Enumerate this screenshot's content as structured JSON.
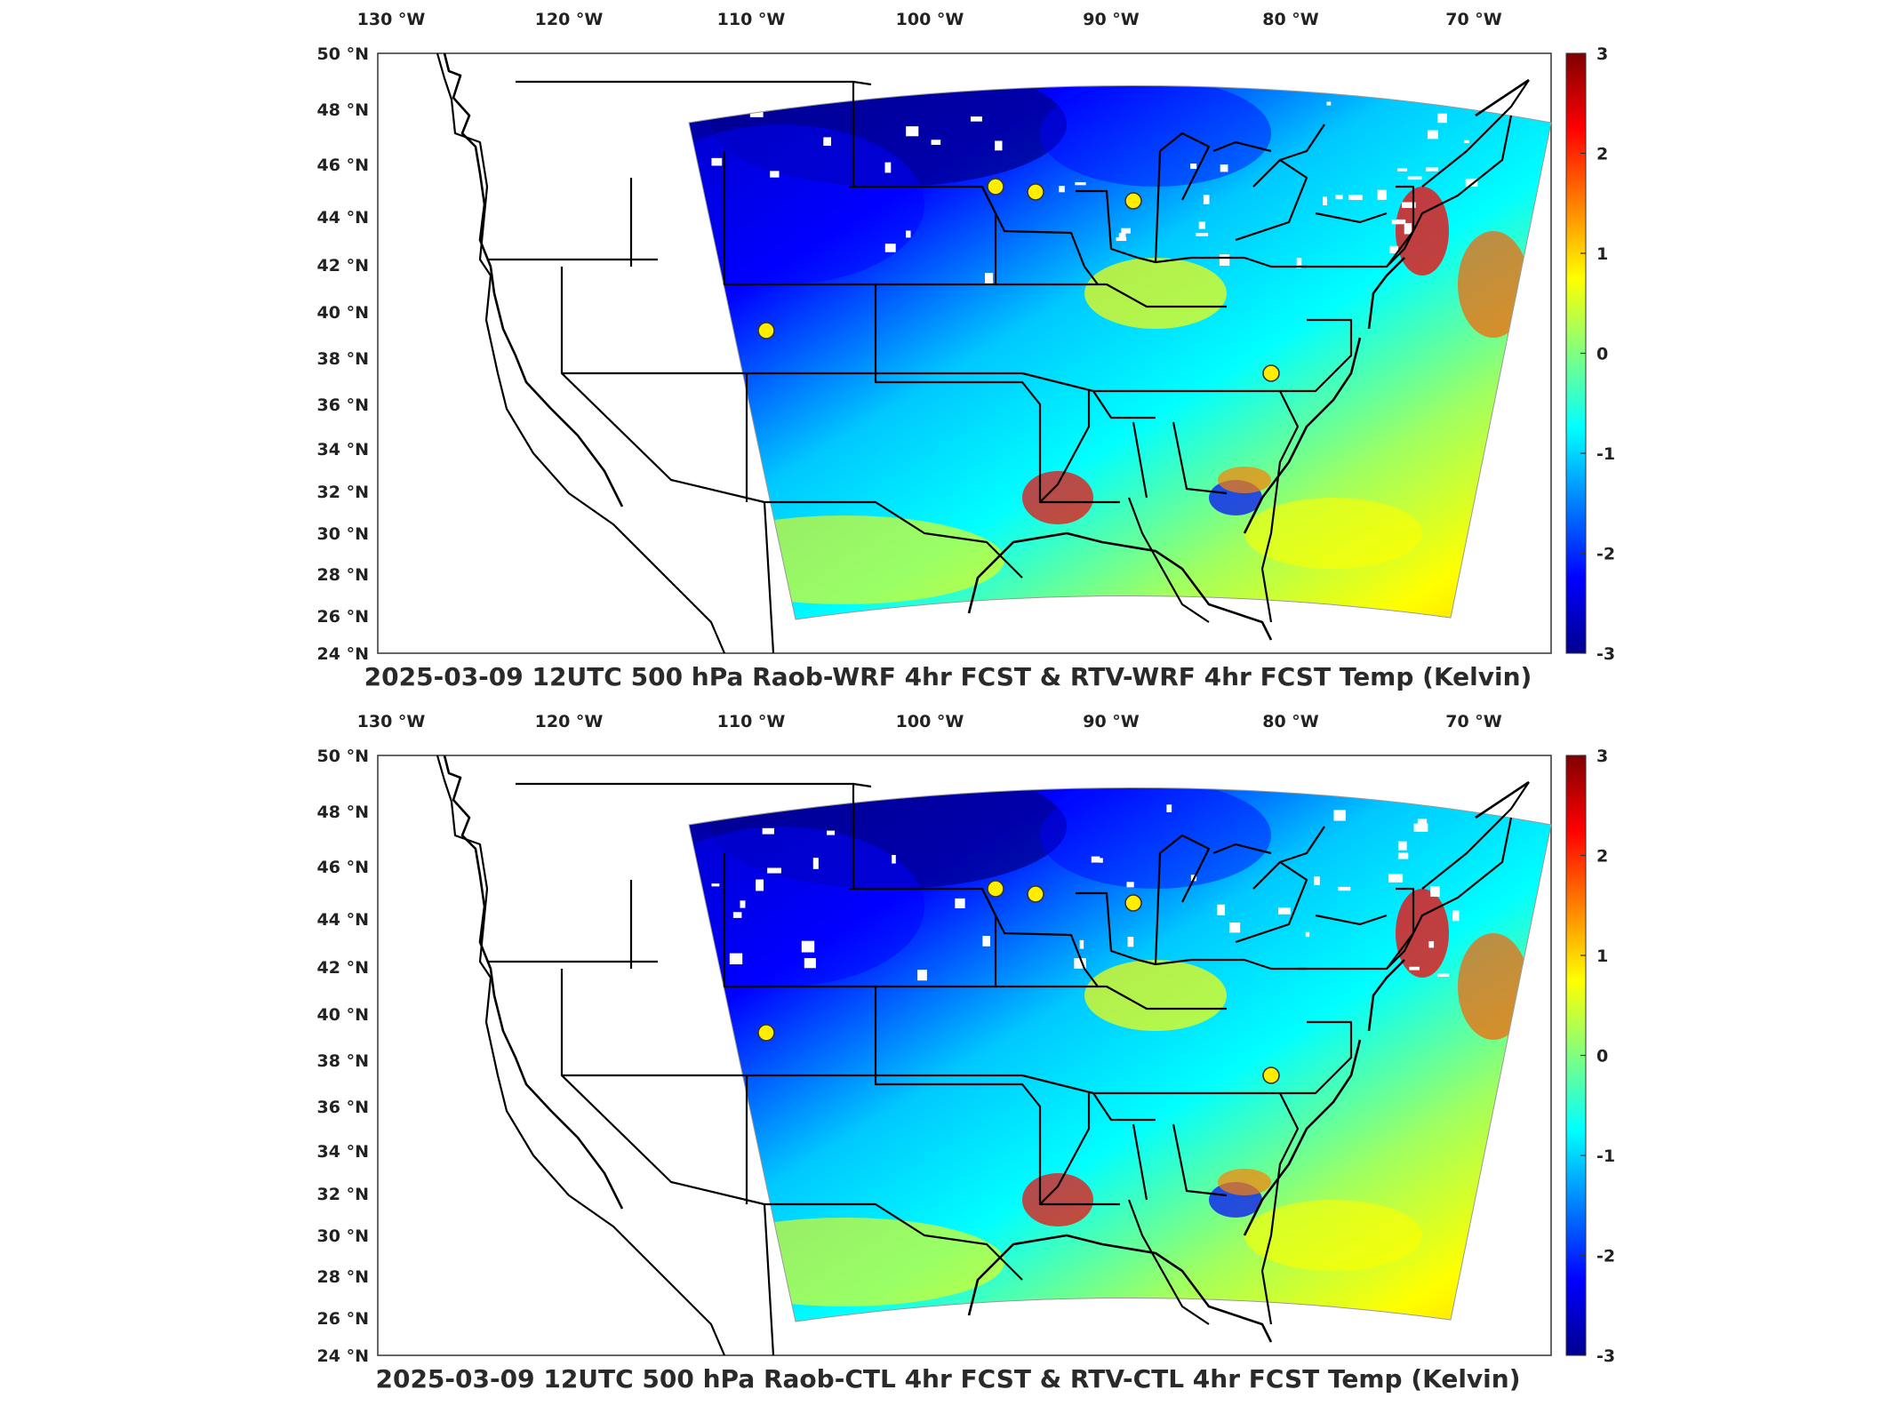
{
  "figure": {
    "colormap": "jet",
    "colors": {
      "dark_blue": "#00008f",
      "blue": "#0000ff",
      "cyan": "#00ffff",
      "yellow": "#ffff00",
      "red": "#ff0000",
      "dark_red": "#800000",
      "station_marker": "#ffee00"
    },
    "lon_ticks": [
      "130 °W",
      "120 °W",
      "110 °W",
      "100 °W",
      "90 °W",
      "80 °W",
      "70 °W"
    ],
    "lat_ticks": [
      "50 °N",
      "48 °N",
      "46 °N",
      "44 °N",
      "42 °N",
      "40 °N",
      "38 °N",
      "36 °N",
      "34 °N",
      "32 °N",
      "30 °N",
      "28 °N",
      "26 °N",
      "24 °N"
    ],
    "colorbar": {
      "range": [
        -3,
        3
      ],
      "ticks": [
        "3",
        "2",
        "1",
        "0",
        "-1",
        "-2",
        "-3"
      ]
    },
    "stations_count": 5
  },
  "panels": [
    {
      "id": "top",
      "title": "2025-03-09 12UTC 500 hPa Raob-WRF 4hr FCST & RTV-WRF 4hr FCST Temp (Kelvin)"
    },
    {
      "id": "bottom",
      "title": "2025-03-09 12UTC 500 hPa Raob-CTL 4hr FCST & RTV-CTL 4hr FCST Temp (Kelvin)"
    }
  ]
}
